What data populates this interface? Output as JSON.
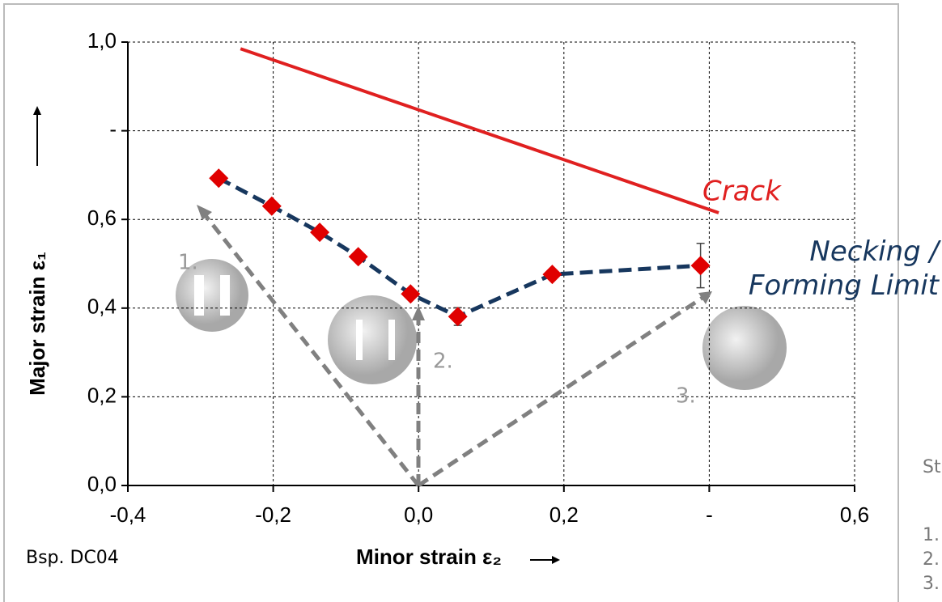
{
  "chart_data": {
    "type": "line",
    "xlabel": "Minor strain ε₂",
    "ylabel": "Major strain ε₁",
    "xlim": [
      -0.4,
      0.6
    ],
    "ylim": [
      0,
      1.0
    ],
    "xticks": [
      {
        "value": -0.4,
        "label": "-0,4"
      },
      {
        "value": -0.2,
        "label": "-0,2"
      },
      {
        "value": 0,
        "label": "0,0"
      },
      {
        "value": 0.2,
        "label": "0,2"
      },
      {
        "value": 0.4,
        "label": "-"
      },
      {
        "value": 0.6,
        "label": "0,6"
      }
    ],
    "yticks": [
      {
        "value": 0,
        "label": "0,0"
      },
      {
        "value": 0.2,
        "label": "0,2"
      },
      {
        "value": 0.4,
        "label": "0,4"
      },
      {
        "value": 0.6,
        "label": "0,6"
      },
      {
        "value": 0.8,
        "label": "-"
      },
      {
        "value": 1.0,
        "label": "1,0"
      }
    ],
    "grid": true,
    "series": [
      {
        "name": "Necking / Forming Limit",
        "color": "#17375e",
        "marker_color": "#e00000",
        "x": [
          -0.275,
          -0.202,
          -0.136,
          -0.083,
          -0.011,
          0.054,
          0.184,
          0.388
        ],
        "values": [
          0.693,
          0.63,
          0.571,
          0.516,
          0.432,
          0.381,
          0.476,
          0.496
        ],
        "errors": [
          null,
          null,
          null,
          null,
          null,
          0.02,
          null,
          0.05
        ]
      },
      {
        "name": "Crack",
        "color": "#e02020",
        "x": [
          -0.245,
          0.413
        ],
        "values": [
          0.985,
          0.615
        ]
      }
    ],
    "annotations": [
      "1.",
      "2.",
      "3."
    ],
    "note": "Bsp. DC04"
  },
  "side_text": [
    "St",
    "1.",
    "2.",
    "3."
  ]
}
